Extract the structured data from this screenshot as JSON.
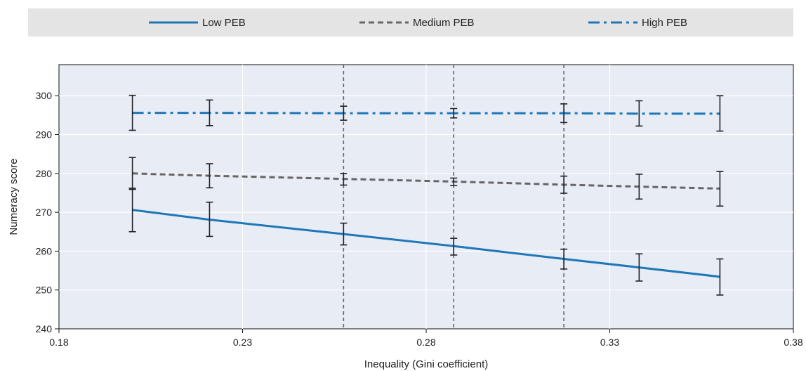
{
  "chart_data": {
    "type": "line",
    "xlabel": "Inequality (Gini coefficient)",
    "ylabel": "Numeracy score",
    "xlim": [
      0.18,
      0.38
    ],
    "ylim": [
      240,
      305
    ],
    "xticks": [
      "0.18",
      "0.23",
      "0.28",
      "0.33",
      "0.38"
    ],
    "xtick_values": [
      0.18,
      0.23,
      0.28,
      0.33,
      0.38
    ],
    "yticks": [
      "240",
      "250",
      "260",
      "270",
      "280",
      "290",
      "300"
    ],
    "ytick_values": [
      240,
      250,
      260,
      270,
      280,
      290,
      300
    ],
    "grid": true,
    "legend_position": "top",
    "x": [
      0.2,
      0.221,
      0.2575,
      0.2875,
      0.3175,
      0.338,
      0.36
    ],
    "series": [
      {
        "name": "Low PEB",
        "style": "solid",
        "color": "#1f77b8",
        "values": [
          270.6,
          268.1,
          264.4,
          261.3,
          258.0,
          255.8,
          253.4
        ],
        "err_low": [
          265.0,
          263.8,
          261.6,
          259.0,
          255.4,
          252.3,
          248.7
        ],
        "err_high": [
          276.2,
          272.6,
          267.2,
          263.3,
          260.5,
          259.3,
          258.0
        ]
      },
      {
        "name": "Medium PEB",
        "style": "dashed",
        "color": "#666666",
        "values": [
          280.0,
          279.4,
          278.6,
          277.9,
          277.1,
          276.6,
          276.1
        ],
        "err_low": [
          275.9,
          276.3,
          277.0,
          276.9,
          274.9,
          273.4,
          271.6
        ],
        "err_high": [
          284.1,
          282.5,
          280.0,
          278.8,
          279.3,
          279.8,
          280.5
        ]
      },
      {
        "name": "High PEB",
        "style": "dashdot",
        "color": "#1f77b8",
        "values": [
          295.6,
          295.6,
          295.5,
          295.5,
          295.5,
          295.4,
          295.4
        ],
        "err_low": [
          291.1,
          292.3,
          293.7,
          294.3,
          293.1,
          292.2,
          290.9
        ],
        "err_high": [
          300.1,
          298.9,
          297.3,
          296.7,
          297.9,
          298.7,
          300.0
        ]
      }
    ],
    "threshold_lines_x": [
      0.2575,
      0.2875,
      0.3175
    ]
  }
}
